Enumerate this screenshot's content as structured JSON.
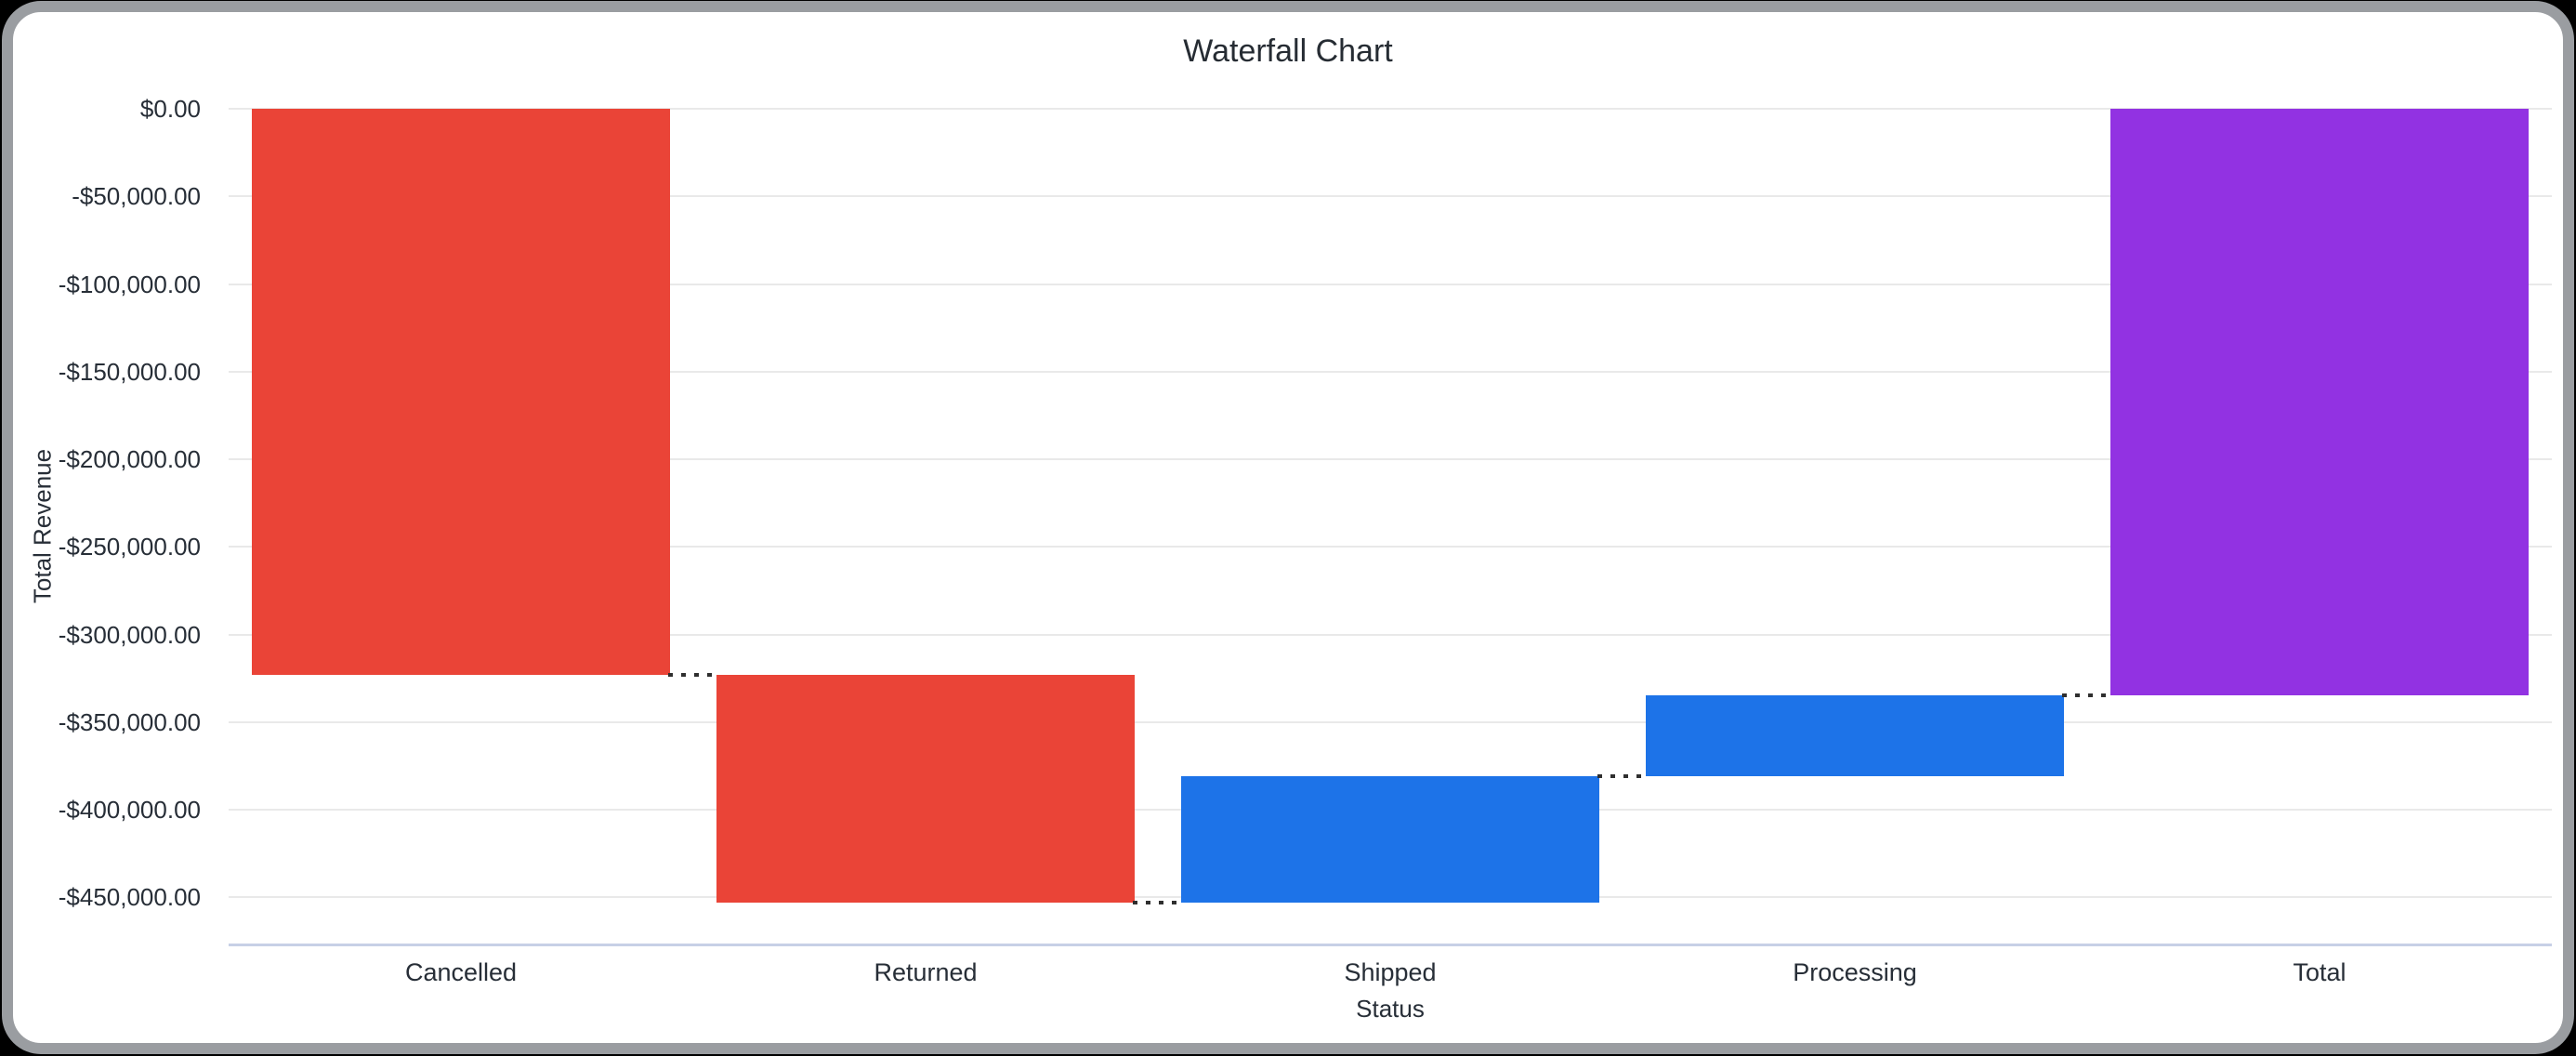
{
  "window": {
    "frame_color": "#9a9da1",
    "surface_color": "#ffffff",
    "backdrop_color": "#000000"
  },
  "chart_data": {
    "type": "bar",
    "variant": "waterfall",
    "title": "Waterfall Chart",
    "xlabel": "Status",
    "ylabel": "Total Revenue",
    "categories": [
      "Cancelled",
      "Returned",
      "Shipped",
      "Processing",
      "Total"
    ],
    "values": [
      -323300,
      -130000,
      72400,
      46400,
      -334500
    ],
    "bars": [
      {
        "label": "Cancelled",
        "start": 0,
        "end": -323300,
        "change": -323300,
        "role": "decrease",
        "color": "#ea4437"
      },
      {
        "label": "Returned",
        "start": -323300,
        "end": -453300,
        "change": -130000,
        "role": "decrease",
        "color": "#ea4437"
      },
      {
        "label": "Shipped",
        "start": -453300,
        "end": -380900,
        "change": 72400,
        "role": "increase",
        "color": "#1d73e8"
      },
      {
        "label": "Processing",
        "start": -380900,
        "end": -334500,
        "change": 46400,
        "role": "increase",
        "color": "#1d73e8"
      },
      {
        "label": "Total",
        "start": 0,
        "end": -334500,
        "change": -334500,
        "role": "total",
        "color": "#9232e2"
      }
    ],
    "y_ticks": [
      {
        "value": 0,
        "label": "$0.00"
      },
      {
        "value": -50000,
        "label": "-$50,000.00"
      },
      {
        "value": -100000,
        "label": "-$100,000.00"
      },
      {
        "value": -150000,
        "label": "-$150,000.00"
      },
      {
        "value": -200000,
        "label": "-$200,000.00"
      },
      {
        "value": -250000,
        "label": "-$250,000.00"
      },
      {
        "value": -300000,
        "label": "-$300,000.00"
      },
      {
        "value": -350000,
        "label": "-$350,000.00"
      },
      {
        "value": -400000,
        "label": "-$400,000.00"
      },
      {
        "value": -450000,
        "label": "-$450,000.00"
      }
    ],
    "ylim": [
      -476500,
      0
    ],
    "grid": true,
    "legend": false,
    "palette": {
      "decrease": "#ea4437",
      "increase": "#1d73e8",
      "total": "#9232e2"
    },
    "style": {
      "gridline_color": "#e9e9e9",
      "axis_line_color": "#c7d0e6",
      "connector_color": "#2f2f2f",
      "label_color": "#272e37",
      "title_color": "#262c33"
    }
  }
}
